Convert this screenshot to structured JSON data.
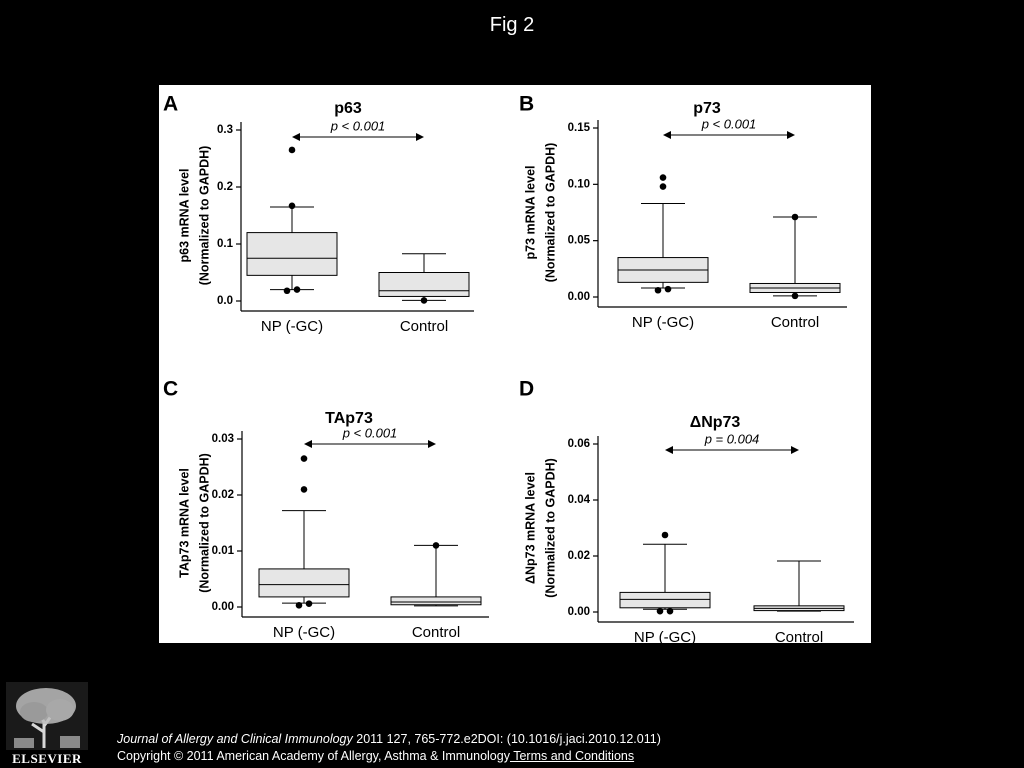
{
  "page_title": "Fig 2",
  "publisher": {
    "name": "ELSEVIER"
  },
  "citation": {
    "journal": "Journal of Allergy and Clinical Immunology",
    "details": " 2011 127, 765-772.e2DOI: (10.1016/j.jaci.2010.12.011)",
    "copyright": "Copyright © 2011 American Academy of Allergy, Asthma & Immunology",
    "terms_link": " Terms and Conditions"
  },
  "chart_data": [
    {
      "panel": "A",
      "type": "box",
      "title": "p63",
      "ylabel": [
        "p63 mRNA level",
        "(Normalized to GAPDH)"
      ],
      "categories": [
        "NP (-GC)",
        "Control"
      ],
      "yticks": [
        0.0,
        0.1,
        0.2,
        0.3
      ],
      "ytick_labels": [
        "0.0",
        "0.1",
        "0.2",
        "0.3"
      ],
      "ylim": [
        -0.005,
        0.3
      ],
      "annotation": "p < 0.001",
      "boxes": [
        {
          "category": "NP (-GC)",
          "whisker_low": 0.02,
          "q1": 0.045,
          "median": 0.075,
          "q3": 0.12,
          "whisker_high": 0.165,
          "outliers": [
            0.265,
            0.167,
            0.018,
            0.02
          ]
        },
        {
          "category": "Control",
          "whisker_low": 0.001,
          "q1": 0.008,
          "median": 0.018,
          "q3": 0.05,
          "whisker_high": 0.083,
          "outliers": [
            0.001
          ]
        }
      ]
    },
    {
      "panel": "B",
      "type": "box",
      "title": "p73",
      "ylabel": [
        "p73 mRNA level",
        "(Normalized to GAPDH)"
      ],
      "categories": [
        "NP (-GC)",
        "Control"
      ],
      "yticks": [
        0.0,
        0.05,
        0.1,
        0.15
      ],
      "ytick_labels": [
        "0.00",
        "0.05",
        "0.10",
        "0.15"
      ],
      "ylim": [
        -0.003,
        0.15
      ],
      "annotation": "p < 0.001",
      "boxes": [
        {
          "category": "NP (-GC)",
          "whisker_low": 0.008,
          "q1": 0.013,
          "median": 0.024,
          "q3": 0.035,
          "whisker_high": 0.083,
          "outliers": [
            0.106,
            0.098,
            0.006,
            0.007
          ]
        },
        {
          "category": "Control",
          "whisker_low": 0.001,
          "q1": 0.004,
          "median": 0.008,
          "q3": 0.012,
          "whisker_high": 0.071,
          "outliers": [
            0.071,
            0.001
          ]
        }
      ]
    },
    {
      "panel": "C",
      "type": "box",
      "title": "TAp73",
      "ylabel": [
        "TAp73 mRNA level",
        "(Normalized to GAPDH)"
      ],
      "categories": [
        "NP (-GC)",
        "Control"
      ],
      "yticks": [
        0.0,
        0.01,
        0.02,
        0.03
      ],
      "ytick_labels": [
        "0.00",
        "0.01",
        "0.02",
        "0.03"
      ],
      "ylim": [
        -0.0005,
        0.03
      ],
      "annotation": "p < 0.001",
      "boxes": [
        {
          "category": "NP (-GC)",
          "whisker_low": 0.0007,
          "q1": 0.0018,
          "median": 0.004,
          "q3": 0.0068,
          "whisker_high": 0.0172,
          "outliers": [
            0.0265,
            0.021,
            0.0003,
            0.0006
          ]
        },
        {
          "category": "Control",
          "whisker_low": 0.0002,
          "q1": 0.0004,
          "median": 0.0009,
          "q3": 0.0018,
          "whisker_high": 0.011,
          "outliers": [
            0.011
          ]
        }
      ]
    },
    {
      "panel": "D",
      "type": "box",
      "title": "ΔNp73",
      "ylabel": [
        "ΔNp73 mRNA level",
        "(Normalized to GAPDH)"
      ],
      "categories": [
        "NP (-GC)",
        "Control"
      ],
      "yticks": [
        0.0,
        0.02,
        0.04,
        0.06
      ],
      "ytick_labels": [
        "0.00",
        "0.02",
        "0.04",
        "0.06"
      ],
      "ylim": [
        -0.001,
        0.06
      ],
      "annotation": "p = 0.004",
      "boxes": [
        {
          "category": "NP (-GC)",
          "whisker_low": 0.001,
          "q1": 0.0015,
          "median": 0.0045,
          "q3": 0.007,
          "whisker_high": 0.0242,
          "outliers": [
            0.0275,
            0.0003,
            0.0003
          ]
        },
        {
          "category": "Control",
          "whisker_low": 0.0003,
          "q1": 0.0005,
          "median": 0.0013,
          "q3": 0.0022,
          "whisker_high": 0.0182,
          "outliers": []
        }
      ]
    }
  ]
}
